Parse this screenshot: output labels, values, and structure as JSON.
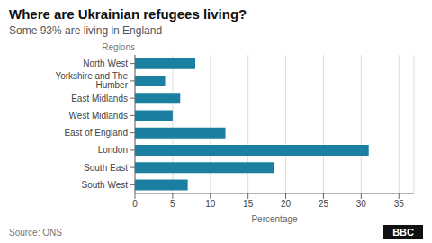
{
  "chart_data": {
    "type": "bar",
    "orientation": "horizontal",
    "title": "Where are Ukrainian refugees living?",
    "subtitle": "Some 93% are living in England",
    "ylabel": "Regions",
    "xlabel": "Percentage",
    "source": "Source: ONS",
    "annotations": [
      "BBC"
    ],
    "color": "#1a7fa0",
    "categories": [
      "North West",
      "Yorkshire and The Humber",
      "East Midlands",
      "West Midlands",
      "East of England",
      "London",
      "South East",
      "South West"
    ],
    "values": [
      8,
      4,
      6,
      5,
      12,
      31,
      18.5,
      7
    ],
    "xlim": [
      0,
      37
    ],
    "xticks": [
      0,
      5,
      10,
      15,
      20,
      25,
      30,
      35
    ],
    "grid": true
  }
}
